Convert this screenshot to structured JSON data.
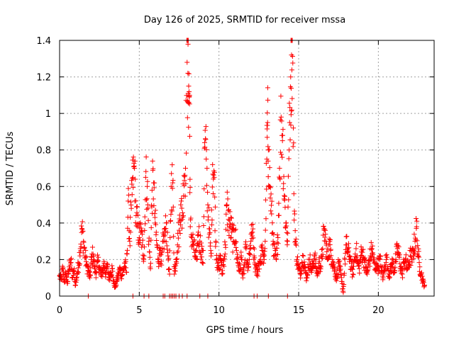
{
  "chart_data": {
    "type": "scatter",
    "title": "Day 126 of 2025, SRMTID for receiver mssa",
    "xlabel": "GPS time / hours",
    "ylabel": "SRMTID / TECUs",
    "xlim": [
      0,
      23.5
    ],
    "ylim": [
      0,
      1.4
    ],
    "x_ticks": [
      0,
      5,
      10,
      15,
      20
    ],
    "x_tick_labels": [
      "0",
      "5",
      "10",
      "15",
      "20"
    ],
    "y_ticks": [
      0,
      0.2,
      0.4,
      0.6,
      0.8,
      1.0,
      1.2,
      1.4
    ],
    "y_tick_labels": [
      "0",
      "0.2",
      "0.4",
      "0.6",
      "0.8",
      "1",
      "1.2",
      "1.4"
    ],
    "grid": true,
    "marker": "plus",
    "color": "#ff0000",
    "series": [
      {
        "name": "SRMTID",
        "points": [
          [
            0.0,
            0.11
          ],
          [
            0.1,
            0.09
          ],
          [
            0.2,
            0.15
          ],
          [
            0.3,
            0.08
          ],
          [
            0.4,
            0.12
          ],
          [
            0.5,
            0.07
          ],
          [
            0.6,
            0.16
          ],
          [
            0.7,
            0.2
          ],
          [
            0.8,
            0.1
          ],
          [
            0.9,
            0.14
          ],
          [
            1.0,
            0.06
          ],
          [
            1.1,
            0.12
          ],
          [
            1.2,
            0.18
          ],
          [
            1.3,
            0.26
          ],
          [
            1.4,
            0.37
          ],
          [
            1.5,
            0.3
          ],
          [
            1.6,
            0.22
          ],
          [
            1.7,
            0.17
          ],
          [
            1.8,
            0.14
          ],
          [
            1.9,
            0.1
          ],
          [
            2.0,
            0.2
          ],
          [
            2.1,
            0.23
          ],
          [
            2.2,
            0.15
          ],
          [
            2.3,
            0.13
          ],
          [
            2.4,
            0.19
          ],
          [
            2.5,
            0.16
          ],
          [
            2.6,
            0.11
          ],
          [
            2.7,
            0.14
          ],
          [
            2.8,
            0.18
          ],
          [
            2.9,
            0.12
          ],
          [
            3.0,
            0.16
          ],
          [
            3.1,
            0.1
          ],
          [
            3.2,
            0.13
          ],
          [
            3.3,
            0.15
          ],
          [
            3.4,
            0.07
          ],
          [
            3.5,
            0.05
          ],
          [
            3.6,
            0.09
          ],
          [
            3.7,
            0.12
          ],
          [
            3.8,
            0.15
          ],
          [
            3.9,
            0.11
          ],
          [
            4.0,
            0.14
          ],
          [
            4.1,
            0.18
          ],
          [
            4.2,
            0.13
          ],
          [
            4.3,
            0.52
          ],
          [
            4.4,
            0.3
          ],
          [
            4.5,
            0.48
          ],
          [
            4.6,
            0.65
          ],
          [
            4.7,
            0.7
          ],
          [
            4.8,
            0.44
          ],
          [
            4.9,
            0.38
          ],
          [
            5.0,
            0.32
          ],
          [
            5.1,
            0.35
          ],
          [
            5.2,
            0.28
          ],
          [
            5.3,
            0.22
          ],
          [
            5.4,
            0.65
          ],
          [
            5.5,
            0.6
          ],
          [
            5.6,
            0.3
          ],
          [
            5.7,
            0.15
          ],
          [
            5.8,
            0.58
          ],
          [
            5.9,
            0.62
          ],
          [
            6.0,
            0.4
          ],
          [
            6.1,
            0.28
          ],
          [
            6.2,
            0.2
          ],
          [
            6.3,
            0.25
          ],
          [
            6.4,
            0.17
          ],
          [
            6.5,
            0.3
          ],
          [
            6.6,
            0.33
          ],
          [
            6.7,
            0.4
          ],
          [
            6.8,
            0.22
          ],
          [
            6.9,
            0.12
          ],
          [
            7.0,
            0.6
          ],
          [
            7.1,
            0.62
          ],
          [
            7.2,
            0.12
          ],
          [
            7.3,
            0.2
          ],
          [
            7.4,
            0.28
          ],
          [
            7.5,
            0.36
          ],
          [
            7.6,
            0.5
          ],
          [
            7.7,
            0.42
          ],
          [
            7.8,
            0.66
          ],
          [
            7.9,
            0.7
          ],
          [
            8.0,
            1.28
          ],
          [
            8.05,
            1.22
          ],
          [
            8.1,
            1.15
          ],
          [
            8.15,
            1.1
          ],
          [
            8.2,
            0.38
          ],
          [
            8.3,
            0.32
          ],
          [
            8.4,
            0.28
          ],
          [
            8.5,
            0.22
          ],
          [
            8.6,
            0.2
          ],
          [
            8.7,
            0.35
          ],
          [
            8.8,
            0.3
          ],
          [
            8.9,
            0.25
          ],
          [
            9.0,
            0.18
          ],
          [
            9.1,
            0.84
          ],
          [
            9.2,
            0.75
          ],
          [
            9.3,
            0.5
          ],
          [
            9.4,
            0.34
          ],
          [
            9.5,
            0.22
          ],
          [
            9.6,
            0.72
          ],
          [
            9.7,
            0.65
          ],
          [
            9.8,
            0.3
          ],
          [
            9.9,
            0.18
          ],
          [
            10.0,
            0.15
          ],
          [
            10.1,
            0.22
          ],
          [
            10.2,
            0.12
          ],
          [
            10.3,
            0.2
          ],
          [
            10.4,
            0.28
          ],
          [
            10.5,
            0.5
          ],
          [
            10.6,
            0.42
          ],
          [
            10.7,
            0.38
          ],
          [
            10.8,
            0.35
          ],
          [
            10.9,
            0.3
          ],
          [
            11.0,
            0.36
          ],
          [
            11.1,
            0.25
          ],
          [
            11.2,
            0.18
          ],
          [
            11.3,
            0.14
          ],
          [
            11.4,
            0.22
          ],
          [
            11.5,
            0.1
          ],
          [
            11.6,
            0.17
          ],
          [
            11.7,
            0.26
          ],
          [
            11.8,
            0.14
          ],
          [
            11.9,
            0.2
          ],
          [
            12.0,
            0.3
          ],
          [
            12.1,
            0.35
          ],
          [
            12.2,
            0.22
          ],
          [
            12.3,
            0.15
          ],
          [
            12.4,
            0.12
          ],
          [
            12.5,
            0.18
          ],
          [
            12.6,
            0.2
          ],
          [
            12.7,
            0.25
          ],
          [
            12.8,
            0.18
          ],
          [
            12.9,
            0.3
          ],
          [
            13.0,
            0.75
          ],
          [
            13.05,
            0.95
          ],
          [
            13.1,
            0.8
          ],
          [
            13.2,
            0.6
          ],
          [
            13.3,
            0.45
          ],
          [
            13.4,
            0.3
          ],
          [
            13.5,
            0.22
          ],
          [
            13.6,
            0.2
          ],
          [
            13.7,
            0.32
          ],
          [
            13.8,
            0.7
          ],
          [
            13.9,
            0.98
          ],
          [
            14.0,
            0.88
          ],
          [
            14.1,
            0.55
          ],
          [
            14.2,
            0.4
          ],
          [
            14.3,
            0.3
          ],
          [
            14.4,
            0.8
          ],
          [
            14.5,
            1.2
          ],
          [
            14.55,
            1.32
          ],
          [
            14.6,
            1.4
          ],
          [
            14.7,
            0.56
          ],
          [
            14.8,
            0.3
          ],
          [
            14.9,
            0.2
          ],
          [
            15.0,
            0.15
          ],
          [
            15.1,
            0.12
          ],
          [
            15.2,
            0.18
          ],
          [
            15.3,
            0.22
          ],
          [
            15.4,
            0.14
          ],
          [
            15.5,
            0.1
          ],
          [
            15.6,
            0.16
          ],
          [
            15.7,
            0.2
          ],
          [
            15.8,
            0.13
          ],
          [
            15.9,
            0.18
          ],
          [
            16.0,
            0.22
          ],
          [
            16.1,
            0.15
          ],
          [
            16.2,
            0.12
          ],
          [
            16.3,
            0.19
          ],
          [
            16.4,
            0.16
          ],
          [
            16.5,
            0.26
          ],
          [
            16.6,
            0.36
          ],
          [
            16.7,
            0.3
          ],
          [
            16.8,
            0.2
          ],
          [
            16.9,
            0.28
          ],
          [
            17.0,
            0.25
          ],
          [
            17.1,
            0.2
          ],
          [
            17.2,
            0.17
          ],
          [
            17.3,
            0.12
          ],
          [
            17.4,
            0.1
          ],
          [
            17.5,
            0.18
          ],
          [
            17.6,
            0.14
          ],
          [
            17.7,
            0.08
          ],
          [
            17.8,
            0.02
          ],
          [
            17.9,
            0.2
          ],
          [
            18.0,
            0.28
          ],
          [
            18.1,
            0.24
          ],
          [
            18.2,
            0.22
          ],
          [
            18.3,
            0.16
          ],
          [
            18.4,
            0.12
          ],
          [
            18.5,
            0.2
          ],
          [
            18.6,
            0.26
          ],
          [
            18.7,
            0.18
          ],
          [
            18.8,
            0.15
          ],
          [
            18.9,
            0.22
          ],
          [
            19.0,
            0.24
          ],
          [
            19.1,
            0.2
          ],
          [
            19.2,
            0.16
          ],
          [
            19.3,
            0.12
          ],
          [
            19.4,
            0.18
          ],
          [
            19.5,
            0.22
          ],
          [
            19.6,
            0.26
          ],
          [
            19.7,
            0.2
          ],
          [
            19.8,
            0.14
          ],
          [
            19.9,
            0.18
          ],
          [
            20.0,
            0.16
          ],
          [
            20.1,
            0.2
          ],
          [
            20.2,
            0.14
          ],
          [
            20.3,
            0.1
          ],
          [
            20.4,
            0.17
          ],
          [
            20.5,
            0.2
          ],
          [
            20.6,
            0.15
          ],
          [
            20.7,
            0.12
          ],
          [
            20.8,
            0.16
          ],
          [
            20.9,
            0.18
          ],
          [
            21.0,
            0.14
          ],
          [
            21.1,
            0.2
          ],
          [
            21.2,
            0.26
          ],
          [
            21.3,
            0.22
          ],
          [
            21.4,
            0.16
          ],
          [
            21.5,
            0.12
          ],
          [
            21.6,
            0.18
          ],
          [
            21.7,
            0.2
          ],
          [
            21.8,
            0.15
          ],
          [
            21.9,
            0.17
          ],
          [
            22.0,
            0.22
          ],
          [
            22.1,
            0.2
          ],
          [
            22.2,
            0.25
          ],
          [
            22.3,
            0.3
          ],
          [
            22.4,
            0.38
          ],
          [
            22.5,
            0.22
          ],
          [
            22.6,
            0.16
          ],
          [
            22.7,
            0.12
          ],
          [
            22.8,
            0.08
          ],
          [
            22.9,
            0.06
          ]
        ],
        "zero_points": [
          1.8,
          4.6,
          5.3,
          5.6,
          6.5,
          6.6,
          6.9,
          7.0,
          7.1,
          7.2,
          7.3,
          7.5,
          7.7,
          8.0,
          8.8,
          9.3,
          12.2,
          12.4,
          13.1,
          14.3
        ]
      }
    ]
  }
}
